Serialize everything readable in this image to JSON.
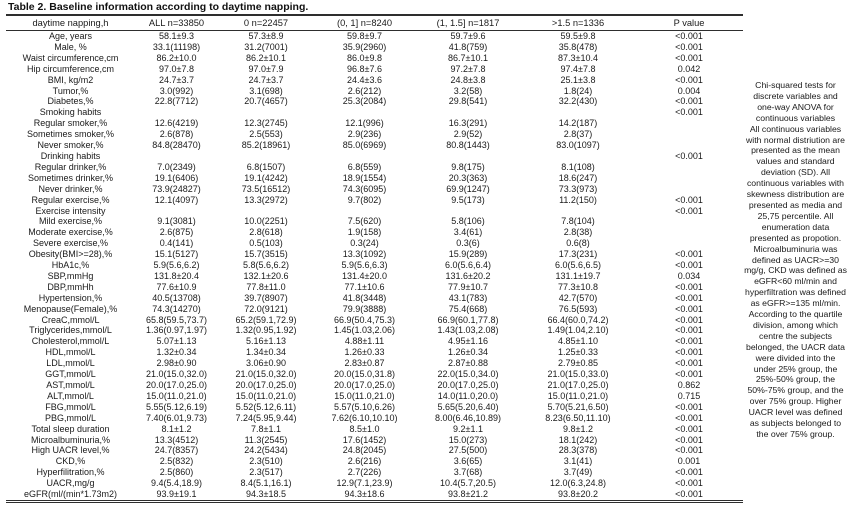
{
  "title": "Table 2. Baseline information according to daytime napping.",
  "table": {
    "columns": [
      "daytime napping,h",
      "ALL n=33850",
      "0 n=22457",
      "(0, 1] n=8240",
      "(1, 1.5] n=1817",
      ">1.5 n=1336",
      "P value"
    ],
    "rows": [
      {
        "label": "Age, years",
        "values": [
          "58.1±9.3",
          "57.3±8.9",
          "59.8±9.7",
          "59.7±9.6",
          "59.5±9.8"
        ],
        "p": "<0.001"
      },
      {
        "label": "Male, %",
        "values": [
          "33.1(11198)",
          "31.2(7001)",
          "35.9(2960)",
          "41.8(759)",
          "35.8(478)"
        ],
        "p": "<0.001"
      },
      {
        "label": "Waist circumference,cm",
        "values": [
          "86.2±10.0",
          "86.2±10.1",
          "86.0±9.8",
          "86.7±10.1",
          "87.3±10.4"
        ],
        "p": "<0.001"
      },
      {
        "label": "Hip circumference,cm",
        "values": [
          "97.0±7.8",
          "97.0±7.9",
          "96.8±7.6",
          "97.2±7.8",
          "97.4±7.8"
        ],
        "p": "0.042"
      },
      {
        "label": "BMI, kg/m2",
        "values": [
          "24.7±3.7",
          "24.7±3.7",
          "24.4±3.6",
          "24.8±3.8",
          "25.1±3.8"
        ],
        "p": "<0.001"
      },
      {
        "label": "Tumor,%",
        "values": [
          "3.0(992)",
          "3.1(698)",
          "2.6(212)",
          "3.2(58)",
          "1.8(24)"
        ],
        "p": "0.004"
      },
      {
        "label": "Diabetes,%",
        "values": [
          "22.8(7712)",
          "20.7(4657)",
          "25.3(2084)",
          "29.8(541)",
          "32.2(430)"
        ],
        "p": "<0.001"
      },
      {
        "label": "Smoking habits",
        "values": [
          "",
          "",
          "",
          "",
          ""
        ],
        "p": "<0.001"
      },
      {
        "label": "Regular smoker,%",
        "values": [
          "12.6(4219)",
          "12.3(2745)",
          "12.1(996)",
          "16.3(291)",
          "14.2(187)"
        ],
        "p": ""
      },
      {
        "label": "Sometimes smoker,%",
        "values": [
          "2.6(878)",
          "2.5(553)",
          "2.9(236)",
          "2.9(52)",
          "2.8(37)"
        ],
        "p": ""
      },
      {
        "label": "Never smoker,%",
        "values": [
          "84.8(28470)",
          "85.2(18961)",
          "85.0(6969)",
          "80.8(1443)",
          "83.0(1097)"
        ],
        "p": ""
      },
      {
        "label": "Drinking habits",
        "values": [
          "",
          "",
          "",
          "",
          ""
        ],
        "p": "<0.001"
      },
      {
        "label": "Regular drinker,%",
        "values": [
          "7.0(2349)",
          "6.8(1507)",
          "6.8(559)",
          "9.8(175)",
          "8.1(108)"
        ],
        "p": ""
      },
      {
        "label": "Sometimes drinker,%",
        "values": [
          "19.1(6406)",
          "19.1(4242)",
          "18.9(1554)",
          "20.3(363)",
          "18.6(247)"
        ],
        "p": ""
      },
      {
        "label": "Never drinker,%",
        "values": [
          "73.9(24827)",
          "73.5(16512)",
          "74.3(6095)",
          "69.9(1247)",
          "73.3(973)"
        ],
        "p": ""
      },
      {
        "label": "Regular exercise,%",
        "values": [
          "12.1(4097)",
          "13.3(2972)",
          "9.7(802)",
          "9.5(173)",
          "11.2(150)"
        ],
        "p": "<0.001"
      },
      {
        "label": "Exercise intensity",
        "values": [
          "",
          "",
          "",
          "",
          ""
        ],
        "p": "<0.001"
      },
      {
        "label": "Mild exercise,%",
        "values": [
          "9.1(3081)",
          "10.0(2251)",
          "7.5(620)",
          "5.8(106)",
          "7.8(104)"
        ],
        "p": ""
      },
      {
        "label": "Moderate exercise,%",
        "values": [
          "2.6(875)",
          "2.8(618)",
          "1.9(158)",
          "3.4(61)",
          "2.8(38)"
        ],
        "p": ""
      },
      {
        "label": "Severe exercise,%",
        "values": [
          "0.4(141)",
          "0.5(103)",
          "0.3(24)",
          "0.3(6)",
          "0.6(8)"
        ],
        "p": ""
      },
      {
        "label": "Obesity(BMI>=28),%",
        "values": [
          "15.1(5127)",
          "15.7(3515)",
          "13.3(1092)",
          "15.9(289)",
          "17.3(231)"
        ],
        "p": "<0.001"
      },
      {
        "label": "HbA1c,%",
        "values": [
          "5.9(5.6,6.2)",
          "5.8(5.6,6.2)",
          "5.9(5.6,6.3)",
          "6.0(5.6,6.4)",
          "6.0(5.6,6.5)"
        ],
        "p": "<0.001"
      },
      {
        "label": "SBP,mmHg",
        "values": [
          "131.8±20.4",
          "132.1±20.6",
          "131.4±20.0",
          "131.6±20.2",
          "131.1±19.7"
        ],
        "p": "0.034"
      },
      {
        "label": "DBP,mmHh",
        "values": [
          "77.6±10.9",
          "77.8±11.0",
          "77.1±10.6",
          "77.9±10.7",
          "77.3±10.8"
        ],
        "p": "<0.001"
      },
      {
        "label": "Hypertension,%",
        "values": [
          "40.5(13708)",
          "39.7(8907)",
          "41.8(3448)",
          "43.1(783)",
          "42.7(570)"
        ],
        "p": "<0.001"
      },
      {
        "label": "Menopause(Female),%",
        "values": [
          "74.3(14270)",
          "72.0(9121)",
          "79.9(3888)",
          "75.4(668)",
          "76.5(593)"
        ],
        "p": "<0.001"
      },
      {
        "label": "CreaC,mmol/L",
        "values": [
          "65.8(59.5,73.7)",
          "65.2(59.1,72.9)",
          "66.9(50.4,75.3)",
          "66.9(60.1,77.8)",
          "66.4(60.0,74.2)"
        ],
        "p": "<0.001"
      },
      {
        "label": "Triglycerides,mmol/L",
        "values": [
          "1.36(0.97,1.97)",
          "1.32(0.95,1.92)",
          "1.45(1.03,2.06)",
          "1.43(1.03,2.08)",
          "1.49(1.04,2.10)"
        ],
        "p": "<0.001"
      },
      {
        "label": "Cholesterol,mmol/L",
        "values": [
          "5.07±1.13",
          "5.16±1.13",
          "4.88±1.11",
          "4.95±1.16",
          "4.85±1.10"
        ],
        "p": "<0.001"
      },
      {
        "label": "HDL,mmol/L",
        "values": [
          "1.32±0.34",
          "1.34±0.34",
          "1.26±0.33",
          "1.26±0.34",
          "1.25±0.33"
        ],
        "p": "<0.001"
      },
      {
        "label": "LDL,mmol/L",
        "values": [
          "2.98±0.90",
          "3.06±0.90",
          "2.83±0.87",
          "2.87±0.88",
          "2.79±0.85"
        ],
        "p": "<0.001"
      },
      {
        "label": "GGT,mmol/L",
        "values": [
          "21.0(15.0,32.0)",
          "21.0(15.0,32.0)",
          "20.0(15.0,31.8)",
          "22.0(15.0,34.0)",
          "21.0(15.0,33.0)"
        ],
        "p": "<0.001"
      },
      {
        "label": "AST,mmol/L",
        "values": [
          "20.0(17.0,25.0)",
          "20.0(17.0,25.0)",
          "20.0(17.0,25.0)",
          "20.0(17.0,25.0)",
          "21.0(17.0,25.0)"
        ],
        "p": "0.862"
      },
      {
        "label": "ALT,mmol/L",
        "values": [
          "15.0(11.0,21.0)",
          "15.0(11.0,21.0)",
          "15.0(11.0,21.0)",
          "14.0(11.0,20.0)",
          "15.0(11.0,21.0)"
        ],
        "p": "0.715"
      },
      {
        "label": "FBG,mmol/L",
        "values": [
          "5.55(5.12,6.19)",
          "5.52(5.12,6.11)",
          "5.57(5.10,6.26)",
          "5.65(5.20,6.40)",
          "5.70(5.21,6.50)"
        ],
        "p": "<0.001"
      },
      {
        "label": "PBG,mmol/L",
        "values": [
          "7.40(6.01,9.73)",
          "7.24(5.95,9.44)",
          "7.62(6.10,10.10)",
          "8.00(6.46,10.89)",
          "8.23(6.50,11.10)"
        ],
        "p": "<0.001"
      },
      {
        "label": "Total sleep duration",
        "values": [
          "8.1±1.2",
          "7.8±1.1",
          "8.5±1.0",
          "9.2±1.1",
          "9.8±1.2"
        ],
        "p": "<0.001"
      },
      {
        "label": "Microalbuminuria,%",
        "values": [
          "13.3(4512)",
          "11.3(2545)",
          "17.6(1452)",
          "15.0(273)",
          "18.1(242)"
        ],
        "p": "<0.001"
      },
      {
        "label": "High UACR level,%",
        "values": [
          "24.7(8357)",
          "24.2(5434)",
          "24.8(2045)",
          "27.5(500)",
          "28.3(378)"
        ],
        "p": "<0.001"
      },
      {
        "label": "CKD,%",
        "values": [
          "2.5(832)",
          "2.3(510)",
          "2.6(216)",
          "3.6(65)",
          "3.1(41)"
        ],
        "p": "0.001"
      },
      {
        "label": "Hyperfilitration,%",
        "values": [
          "2.5(860)",
          "2.3(517)",
          "2.7(226)",
          "3.7(68)",
          "3.7(49)"
        ],
        "p": "<0.001"
      },
      {
        "label": "UACR,mg/g",
        "values": [
          "9.4(5.4,18.9)",
          "8.4(5.1,16.1)",
          "12.9(7.1,23.9)",
          "10.4(5.7,20.5)",
          "12.0(6.3,24.8)"
        ],
        "p": "<0.001"
      },
      {
        "label": "eGFR(ml/(min*1.73m2)",
        "values": [
          "93.9±19.1",
          "94.3±18.5",
          "94.3±18.6",
          "93.8±21.2",
          "93.8±20.2"
        ],
        "p": "<0.001"
      }
    ]
  },
  "notes": {
    "paragraphs": [
      "Chi-squared tests for discrete variables and one-way ANOVA for continuous variables",
      "All continuous variables with normal distriution are presented as the mean values and standard deviation (SD). All continuous variables with skewness distribution are presented as media and 25,75 percentile. All enumeration data presented as propotion.",
      "Microalbuminuria was defined as UACR>=30 mg/g, CKD was defined as eGFR<60 ml/min and hyperfiltration was defined as eGFR>=135 ml/min.",
      "According to the quartile division, among which centre the subjects belonged, the UACR data were divided into the under 25% group, the 25%-50% group, the 50%-75% group, and the over 75% group. Higher UACR level was defined as subjects belonged to the over 75% group."
    ]
  }
}
